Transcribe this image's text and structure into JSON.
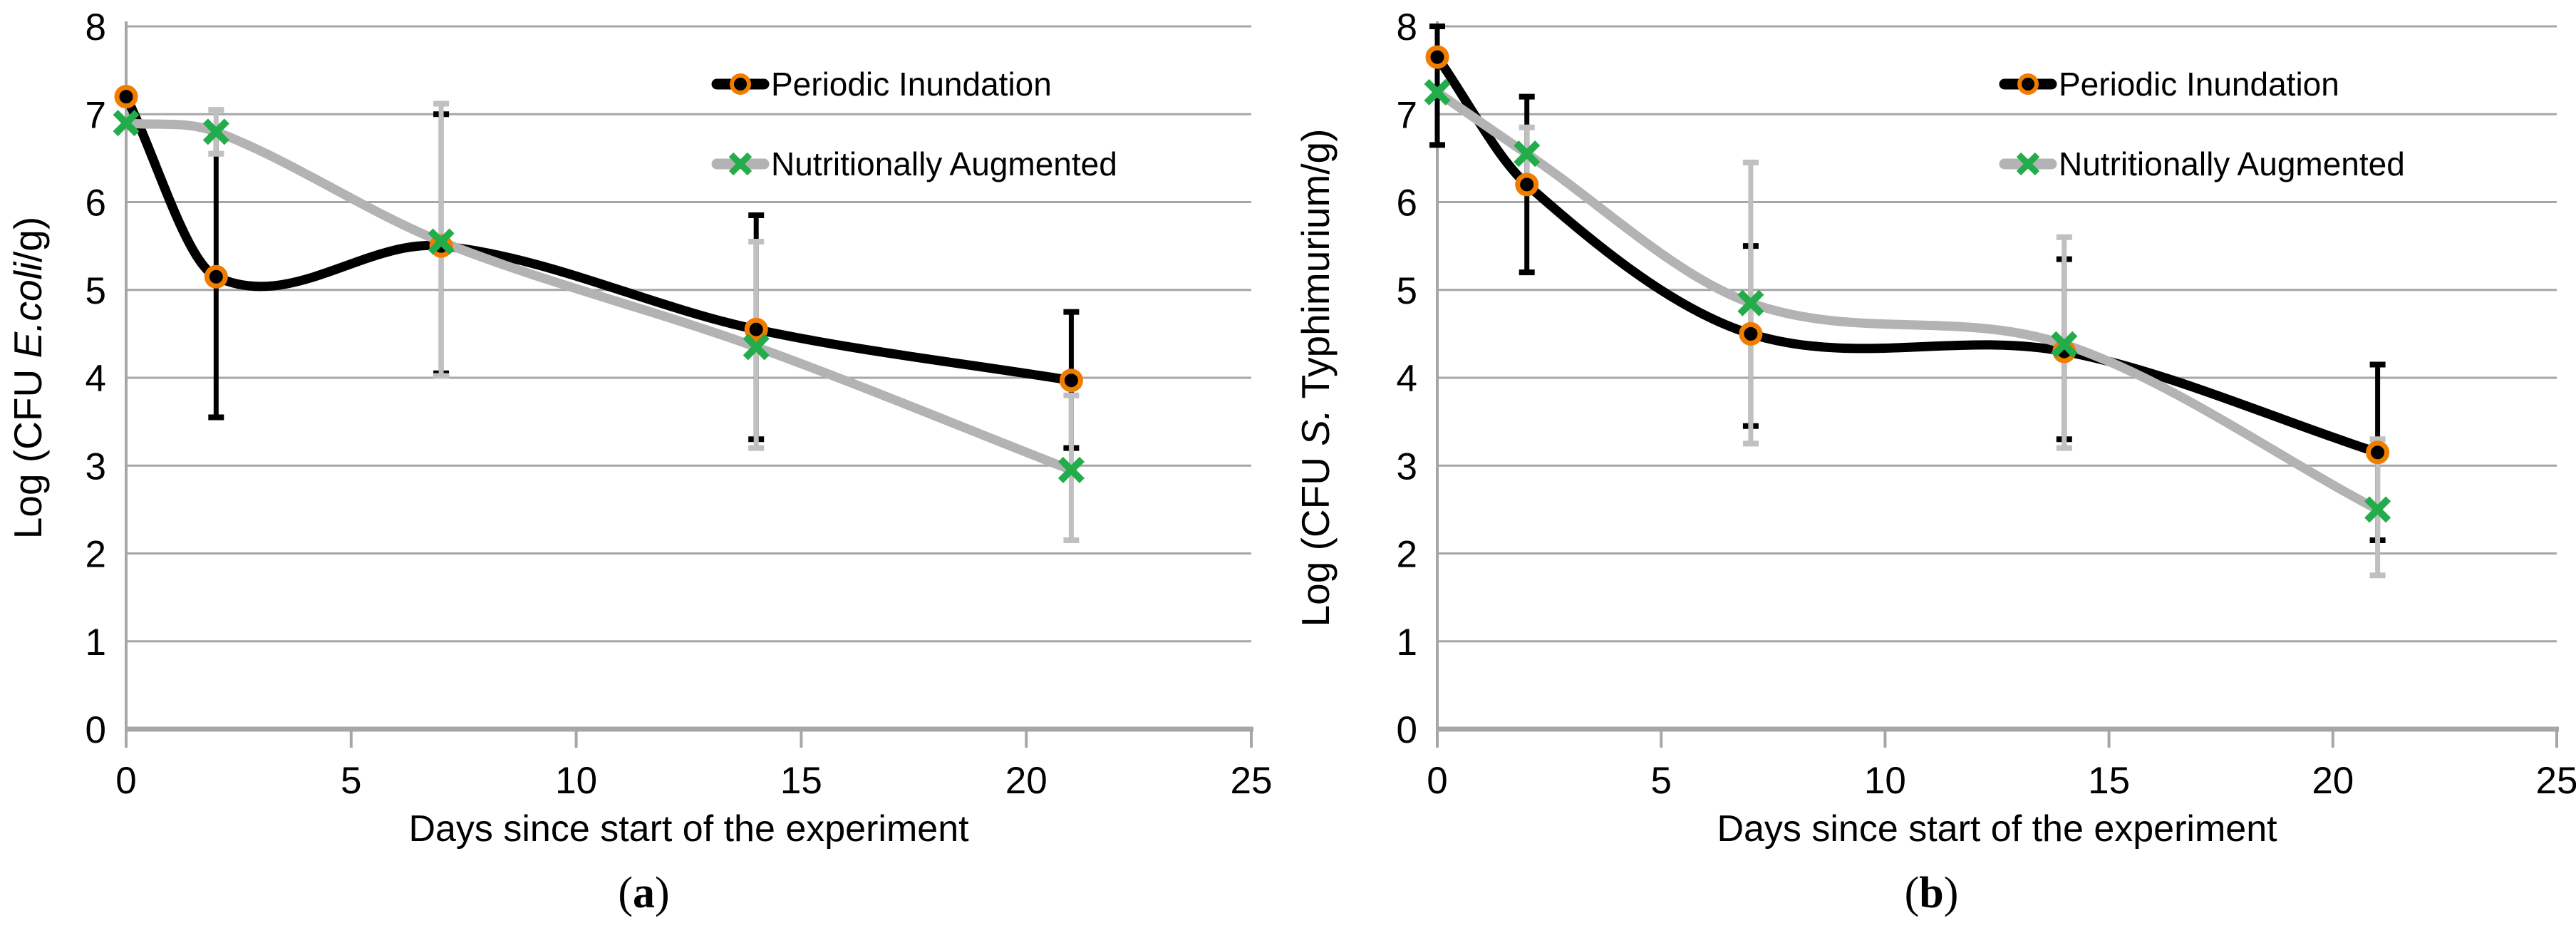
{
  "colors": {
    "background": "#ffffff",
    "gridline": "#a6a6a6",
    "axis": "#a6a6a6",
    "text": "#000000",
    "series_black": "#000000",
    "series_gray": "#b3b3b3",
    "error_bar_black": "#000000",
    "error_bar_gray": "#c0c0c0",
    "marker_ring_orange": "#f07d00",
    "marker_fill_black": "#000000",
    "marker_x_green": "#22ac4a"
  },
  "legend": {
    "items": [
      {
        "label": "Periodic Inundation",
        "marker": "circle-icon",
        "line_color": "#000000"
      },
      {
        "label": "Nutritionally Augmented",
        "marker": "x-icon",
        "line_color": "#b3b3b3"
      }
    ]
  },
  "chart_data": [
    {
      "type": "line",
      "caption_open": "(",
      "caption_letter": "a",
      "caption_close": ")",
      "xlabel": "Days since start of the experiment",
      "ylabel_parts": [
        {
          "t": "Log (CFU ",
          "i": false
        },
        {
          "t": "E.coli",
          "i": true
        },
        {
          "t": "/g)",
          "i": false
        }
      ],
      "xlim": [
        0,
        25
      ],
      "ylim": [
        0,
        8
      ],
      "x_ticks": [
        0,
        5,
        10,
        15,
        20,
        25
      ],
      "y_ticks": [
        0,
        1,
        2,
        3,
        4,
        5,
        6,
        7,
        8
      ],
      "grid": true,
      "legend_position": "top-right-inside",
      "x": [
        0,
        2,
        7,
        14,
        21
      ],
      "series": [
        {
          "name": "Periodic Inundation",
          "values": [
            7.2,
            5.15,
            5.5,
            4.55,
            3.97
          ],
          "error_bars": [
            null,
            [
              3.55,
              6.78
            ],
            [
              4.05,
              7.0
            ],
            [
              3.3,
              5.85
            ],
            [
              3.2,
              4.75
            ]
          ]
        },
        {
          "name": "Nutritionally Augmented",
          "values": [
            6.9,
            6.8,
            5.55,
            4.35,
            2.95
          ],
          "error_bars": [
            null,
            [
              6.55,
              7.05
            ],
            [
              4.02,
              7.12
            ],
            [
              3.2,
              5.55
            ],
            [
              2.15,
              3.8
            ]
          ]
        }
      ]
    },
    {
      "type": "line",
      "caption_open": "(",
      "caption_letter": "b",
      "caption_close": ")",
      "xlabel": "Days since start of the experiment",
      "ylabel_parts": [
        {
          "t": "Log (CFU ",
          "i": false
        },
        {
          "t": "S.",
          "i": true
        },
        {
          "t": " Typhimurium/g)",
          "i": false
        }
      ],
      "xlim": [
        0,
        25
      ],
      "ylim": [
        0,
        8
      ],
      "x_ticks": [
        0,
        5,
        10,
        15,
        20,
        25
      ],
      "y_ticks": [
        0,
        1,
        2,
        3,
        4,
        5,
        6,
        7,
        8
      ],
      "grid": true,
      "legend_position": "top-right-inside",
      "x": [
        0,
        2,
        7,
        14,
        21
      ],
      "series": [
        {
          "name": "Periodic Inundation",
          "values": [
            7.65,
            6.2,
            4.5,
            4.3,
            3.15
          ],
          "error_bars": [
            [
              6.65,
              8.0
            ],
            [
              5.2,
              7.2
            ],
            [
              3.45,
              5.5
            ],
            [
              3.3,
              5.35
            ],
            [
              2.15,
              4.15
            ]
          ]
        },
        {
          "name": "Nutritionally Augmented",
          "values": [
            7.25,
            6.55,
            4.85,
            4.38,
            2.5
          ],
          "error_bars": [
            null,
            [
              6.25,
              6.85
            ],
            [
              3.25,
              6.45
            ],
            [
              3.2,
              5.6
            ],
            [
              1.75,
              3.3
            ]
          ]
        }
      ]
    }
  ]
}
